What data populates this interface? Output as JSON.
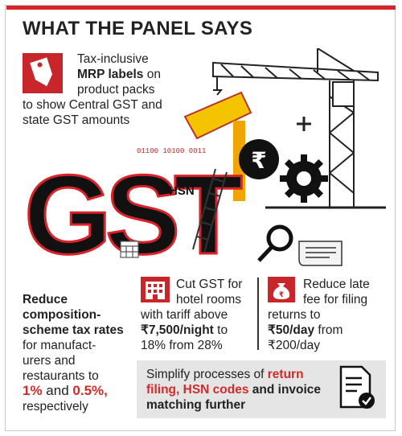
{
  "header": {
    "title": "WHAT THE PANEL SAYS"
  },
  "graphic": {
    "logo_text": "GST",
    "hsn_label": "HSN",
    "binary_text": "01100 10100 0011",
    "accent": "#d8232a",
    "yellow": "#f5c400"
  },
  "mrp": {
    "l1": "Tax-inclusive",
    "l2_bold": "MRP labels",
    "l2_rest": " on",
    "l3": "product packs",
    "l4": "to show Central GST and",
    "l5": "state GST amounts"
  },
  "composition": {
    "l1": "Reduce",
    "l2": "composition-",
    "l3": "scheme tax rates",
    "l4": "for manufact-",
    "l5": "urers and",
    "l6": "restaurants to",
    "v1": "1%",
    "and": " and ",
    "v2": "0.5%,",
    "l8": "respectively"
  },
  "hotel": {
    "l1": "Cut GST for",
    "l2": "hotel rooms",
    "l3": "with tariff above",
    "l4_bold": "₹7,500/night",
    "l4_rest": " to",
    "l5": "18% from 28%"
  },
  "latefee": {
    "l1": "Reduce late",
    "l2": "fee for filing",
    "l3": "returns to",
    "l4_bold": "₹50/day",
    "l4_rest": " from",
    "l5": "₹200/day"
  },
  "simplify": {
    "t1": "Simplify processes of ",
    "t2": "return",
    "t3": "filing, HSN codes",
    "t4": " and invoice",
    "t5": "matching further"
  }
}
